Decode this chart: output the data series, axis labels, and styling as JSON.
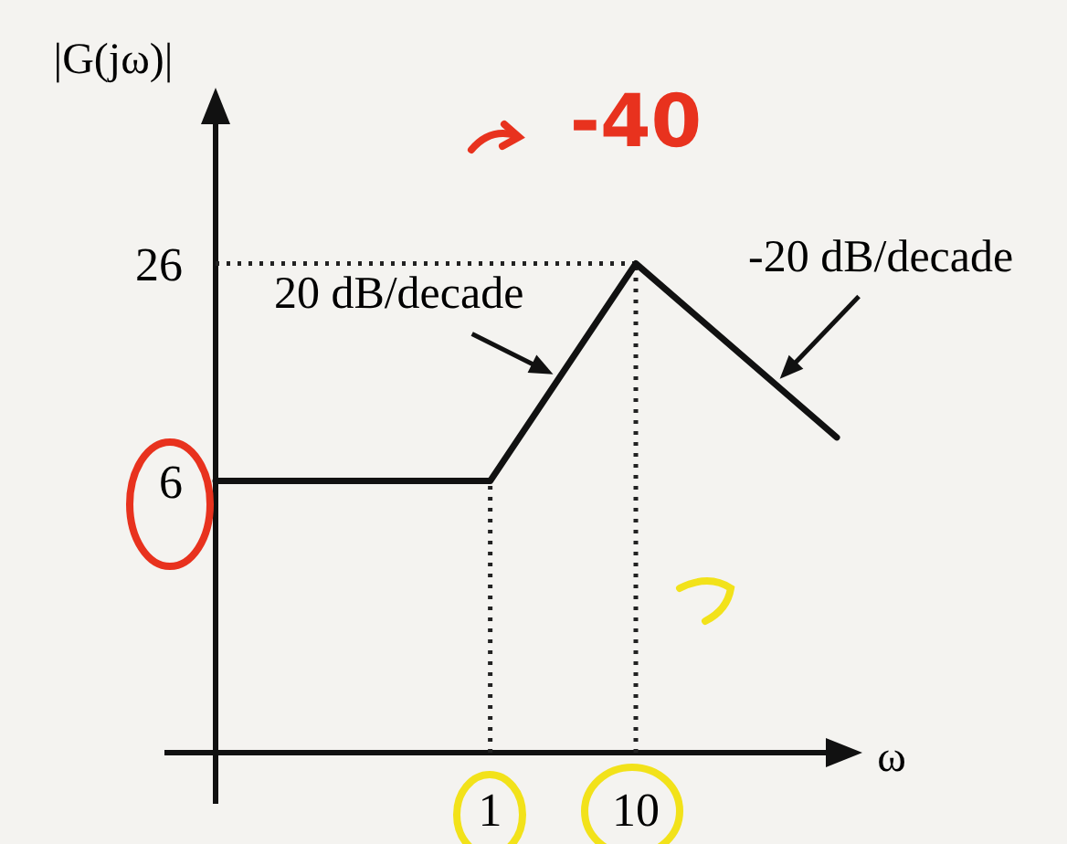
{
  "chart_data": {
    "type": "line",
    "ylabel": "|G(jω)|",
    "xlabel": "ω",
    "log": "x",
    "x": [
      0.013,
      1,
      10,
      240
    ],
    "series": [
      {
        "color": "#111111",
        "values": [
          6,
          6,
          26,
          10
        ]
      }
    ],
    "xlim": [
      0.013,
      240
    ],
    "ylim": [
      -19,
      41
    ],
    "xticks": [
      1,
      10
    ],
    "yticks": [
      6,
      26
    ],
    "grid": false,
    "marker": "none",
    "line_style": "solid",
    "ref_lines": [
      {
        "axis": "y",
        "value": 26,
        "line_style": "dotted"
      },
      {
        "axis": "x",
        "value": 1,
        "line_style": "dotted"
      },
      {
        "axis": "x",
        "value": 10,
        "line_style": "dotted"
      }
    ],
    "annotations": [
      {
        "text": "20 dB/decade",
        "x": 3,
        "y": 15.5
      },
      {
        "text": "-20 dB/decade",
        "x": 90,
        "y": 14.9
      },
      "-40"
    ]
  }
}
